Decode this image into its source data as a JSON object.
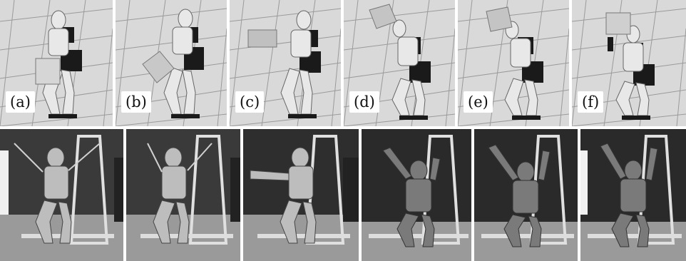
{
  "figure": {
    "sim_panels": [
      {
        "label": "(a)",
        "pose": "box-low",
        "box_color": "#d6d6d6"
      },
      {
        "label": "(b)",
        "pose": "box-mid",
        "box_color": "#c8c8c8"
      },
      {
        "label": "(c)",
        "pose": "box-chest",
        "box_color": "#c0c0c0"
      },
      {
        "label": "(d)",
        "pose": "box-overhead",
        "box_color": "#c4c4c4"
      },
      {
        "label": "(e)",
        "pose": "box-overhead",
        "box_color": "#c4c4c4"
      },
      {
        "label": "(f)",
        "pose": "box-overhead-high",
        "box_color": "#cfcfcf"
      }
    ],
    "real_panels": [
      {
        "pose": "crouch"
      },
      {
        "pose": "crouch"
      },
      {
        "pose": "arms-forward"
      },
      {
        "pose": "arms-raised"
      },
      {
        "pose": "arms-raised"
      },
      {
        "pose": "arms-raised"
      }
    ]
  }
}
